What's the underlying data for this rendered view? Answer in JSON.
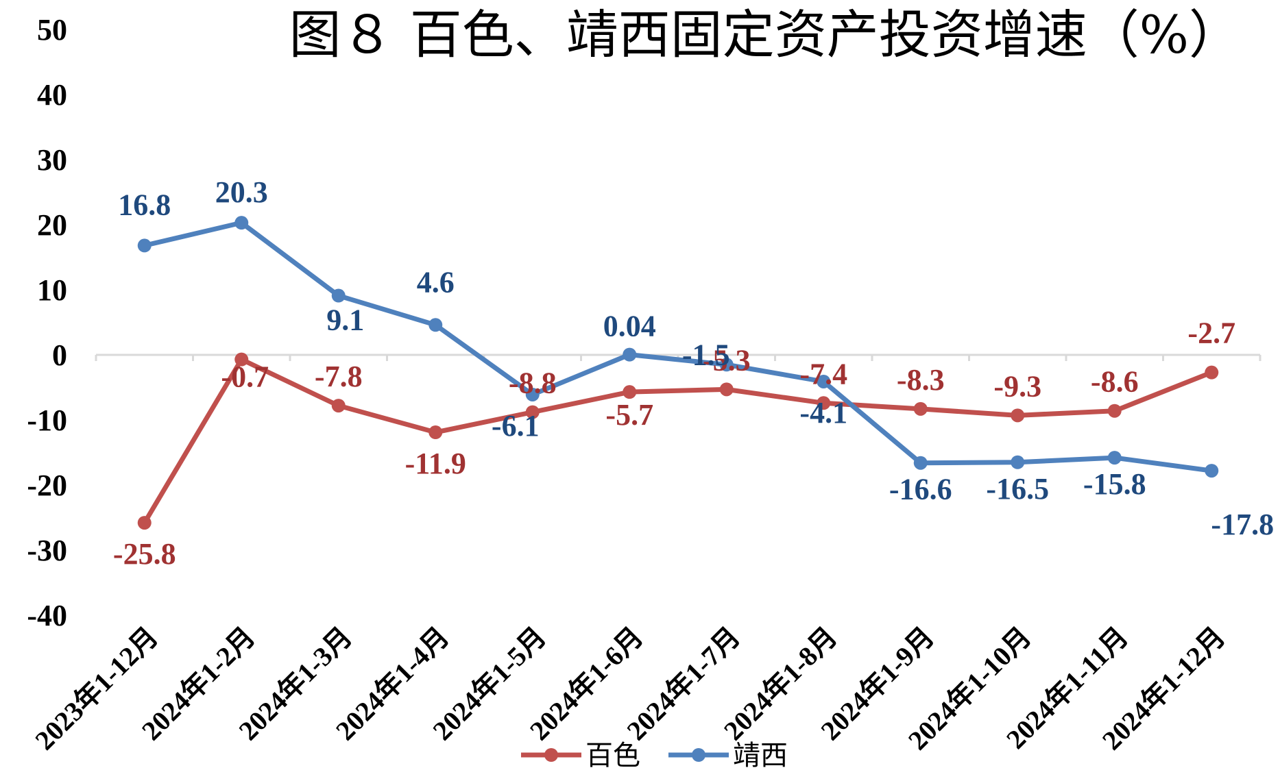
{
  "chart_data": {
    "type": "line",
    "title": "图８ 百色、靖西固定资产投资增速（%）",
    "categories": [
      "2023年1-12月",
      "2024年1-2月",
      "2024年1-3月",
      "2024年1-4月",
      "2024年1-5月",
      "2024年1-6月",
      "2024年1-7月",
      "2024年1-8月",
      "2024年1-9月",
      "2024年1-10月",
      "2024年1-11月",
      "2024年1-12月"
    ],
    "series": [
      {
        "name": "百色",
        "color": "#C0504D",
        "label_color": "#A03232",
        "values": [
          -25.8,
          -0.7,
          -7.8,
          -11.9,
          -8.8,
          -5.7,
          -5.3,
          -7.4,
          -8.3,
          -9.3,
          -8.6,
          -2.7
        ],
        "labels": [
          "-25.8",
          "-0.7",
          "-7.8",
          "-11.9",
          "-8.8",
          "-5.7",
          "-5.3",
          "-7.4",
          "-8.3",
          "-9.3",
          "-8.6",
          "-2.7"
        ]
      },
      {
        "name": "靖西",
        "color": "#4F81BD",
        "label_color": "#1F497D",
        "values": [
          16.8,
          20.3,
          9.1,
          4.6,
          -6.1,
          0.04,
          -1.5,
          -4.1,
          -16.6,
          -16.5,
          -15.8,
          -17.8
        ],
        "labels": [
          "16.8",
          "20.3",
          "9.1",
          "4.6",
          "-6.1",
          "0.04",
          "-1.5",
          "-4.1",
          "-16.6",
          "-16.5",
          "-15.8",
          "-17.8"
        ]
      }
    ],
    "yticks": [
      "50",
      "40",
      "30",
      "20",
      "10",
      "0",
      "-10",
      "-20",
      "-30",
      "-40"
    ],
    "ylim": [
      -40,
      50
    ],
    "grid": false,
    "legend_position": "bottom"
  }
}
